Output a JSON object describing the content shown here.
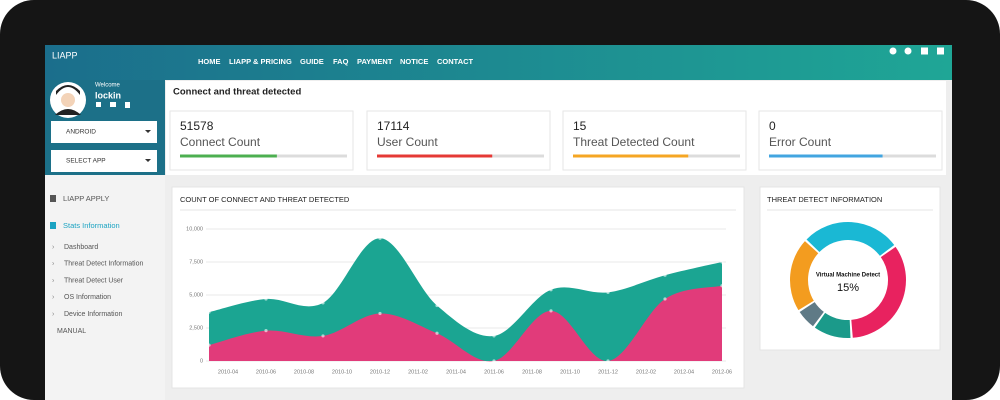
{
  "header": {
    "brand": "LIAPP",
    "nav": [
      "HOME",
      "LIAPP & PRICING",
      "GUIDE",
      "FAQ",
      "PAYMENT",
      "NOTICE",
      "CONTACT"
    ]
  },
  "sidebar": {
    "welcome": "Welcome",
    "user": "lockin",
    "dropdowns": [
      "ANDROID",
      "SELECT APP"
    ],
    "menu": [
      "LIAPP APPLY",
      "Stats Information"
    ],
    "submenu": [
      "Dashboard",
      "Threat Detect Information",
      "Threat Detect User",
      "OS Information",
      "Device Information"
    ],
    "manual": "MANUAL"
  },
  "panel_title": "Connect and threat detected",
  "stats": [
    {
      "value": 51578,
      "label": "Connect Count",
      "progress": 58,
      "color": "#4caf50"
    },
    {
      "value": 17114,
      "label": "User Count",
      "progress": 69,
      "color": "#e53935"
    },
    {
      "value": 15,
      "label": "Threat Detected Count",
      "progress": 69,
      "color": "#f5a623"
    },
    {
      "value": 0,
      "label": "Error Count",
      "progress": 68,
      "color": "#42a5e0"
    }
  ],
  "area_chart": {
    "type": "area",
    "title": "COUNT OF CONNECT AND THREAT DETECTED",
    "x": [
      "2010-03",
      "2010-06",
      "2010-09",
      "2010-12",
      "2011-03",
      "2011-06",
      "2011-09",
      "2011-12",
      "2012-03",
      "2012-06"
    ],
    "series": [
      {
        "color": "#1ba592",
        "values": [
          3700,
          4700,
          4400,
          9300,
          4200,
          1900,
          5400,
          5200,
          6500,
          7500
        ]
      },
      {
        "color": "#e13b7a",
        "values": [
          1200,
          2300,
          1900,
          3600,
          2100,
          0,
          3800,
          0,
          4700,
          5700
        ]
      }
    ],
    "xticks": [
      "2010-04",
      "2010-06",
      "2010-08",
      "2010-10",
      "2010-12",
      "2011-02",
      "2011-04",
      "2011-06",
      "2011-08",
      "2011-10",
      "2011-12",
      "2012-02",
      "2012-04",
      "2012-06"
    ],
    "ylim": [
      0,
      10000
    ],
    "yticks": [
      0,
      {
        "value": 2500,
        "label": "2,500"
      },
      {
        "value": 5000,
        "label": "5,000"
      },
      {
        "value": 7500,
        "label": "7,500"
      },
      {
        "value": 10000,
        "label": "10,000"
      }
    ],
    "grid": true
  },
  "donut": {
    "type": "donut",
    "title": "THREAT DETECT INFORMATION",
    "values": [
      28,
      34,
      11,
      6,
      21
    ],
    "colors": [
      "#1ab8d4",
      "#e8225f",
      "#1b9a8a",
      "#5f7a86",
      "#f39c1f"
    ],
    "center_label": "Virtual Machine Detect",
    "center_value": "15%"
  }
}
